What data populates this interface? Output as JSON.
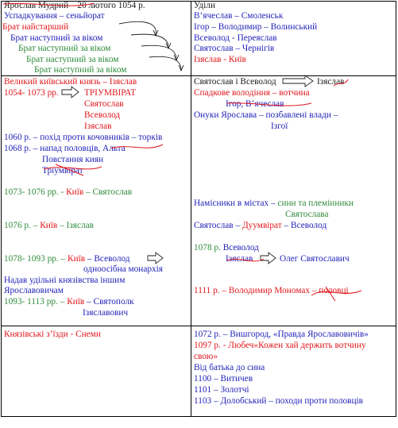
{
  "top_left": {
    "line1": "Ярослав Мудрий – 20 лютого 1054 р.",
    "line2": "Успадкування – сеньйорат",
    "line3": "Брат найстарший",
    "line4": "Брат наступний за віком",
    "line5": "Брат наступний за віком",
    "line6": "Брат наступний за віком",
    "line7": "Брат наступний за віком",
    "line8": "Брат наступний за віком"
  },
  "top_right": {
    "line1": "Уділи",
    "line2": "В’ячеслав – Смоленськ",
    "line3": "Ігор – Володимир – Волинський",
    "line4": "Всеволод - Переяслав",
    "line5": "Святослав – Чернігів",
    "line6": "Ізяслав - Київ"
  },
  "mid_left": {
    "l1": "Великий київський князь – Ізяслав",
    "l2a": "1054- 1073 рр.",
    "l2b": "ТРІУМВІРАТ",
    "l3": "Святослав",
    "l4": "Всеволод",
    "l5": "Ізяслав",
    "l6": "1060 р. – похід проти кочовників – торків",
    "l7": "1068 р. – напад половців, Альта",
    "l8": "Повстання киян",
    "l9": "Тріумвірат",
    "l10a": "1073- 1076 рр. - ",
    "l10b": "Київ",
    "l10c": " – Святослав",
    "l11a": "1076 р. – ",
    "l11b": "Київ",
    "l11c": " – Ізяслав",
    "l12a": "1078- 1093 рр. – ",
    "l12b": "Київ",
    "l12c": " – Всеволод",
    "l13": "одноосібна монархія",
    "l14": "Надав удільні князівства іншим",
    "l15": "Ярославовичам",
    "l16a": "1093- 1113 рр. – ",
    "l16b": "Київ",
    "l16c": " – Святополк",
    "l17": "Ізяславович"
  },
  "mid_right": {
    "l1a": "Святослав і Всеволод",
    "l1b": "Ізяслав",
    "l2": "Спадкове володіння – вотчина",
    "l3": "Ігор, В’ячеслав",
    "l4": "Онуки Ярослава – позбавлені влади –",
    "l5": "Ізгої",
    "l6a": "Намісники в містах – ",
    "l6b": "сини та племінники",
    "l7": "Святослава",
    "l8a": "Святослав – ",
    "l8b": "Дуумвірат",
    "l8c": " – Всеволод",
    "l9": "1078 р. Всеволод",
    "l10a": "Ізяслав",
    "l10b": "Олег Святославич",
    "l11": "1111 р. – Володимир Мономах – половці"
  },
  "bottom_left": {
    "l1": "Князівські з’їзди - Снеми"
  },
  "bottom_right": {
    "l1": "1072 р. – Вишгород, «Правда Ярославовичів»",
    "l2": "1097 р. - Любеч«Кожен хай держить вотчину",
    "l3": "свою»",
    "l4": "Від батька до сина",
    "l5": "1100 – Витичев",
    "l6": "1101 – Золотчі",
    "l7": "1103 – Долобський – походи проти половців"
  },
  "colors": {
    "blue": "#1f1fb8",
    "red": "#e0161b",
    "green": "#2e8b3a",
    "border": "#000000"
  }
}
